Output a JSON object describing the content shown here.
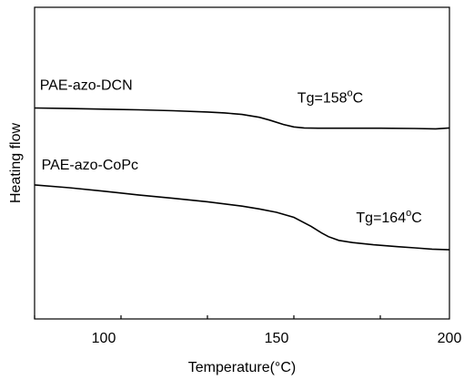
{
  "chart_data": {
    "type": "line",
    "title": "",
    "xlabel": "Temperature(°C)",
    "ylabel": "Heating flow",
    "xlim": [
      80,
      200
    ],
    "ylim": [
      0,
      10
    ],
    "x_ticks": [
      100,
      150,
      200
    ],
    "x_tick_labels": [
      "100",
      "150",
      "200"
    ],
    "y_ticks_shown": false,
    "grid": false,
    "legend": "none",
    "series": [
      {
        "name": "PAE-azo-DCN",
        "x": [
          80,
          90,
          100,
          110,
          120,
          130,
          135,
          140,
          145,
          148,
          152,
          155,
          158,
          162,
          170,
          180,
          190,
          196,
          200
        ],
        "y": [
          6.77,
          6.75,
          6.73,
          6.71,
          6.68,
          6.64,
          6.61,
          6.56,
          6.47,
          6.38,
          6.24,
          6.16,
          6.13,
          6.12,
          6.12,
          6.12,
          6.11,
          6.1,
          6.13
        ]
      },
      {
        "name": "PAE-azo-CoPc",
        "x": [
          80,
          90,
          100,
          110,
          120,
          130,
          140,
          145,
          150,
          155,
          160,
          163,
          165,
          168,
          172,
          178,
          185,
          190,
          195,
          200
        ],
        "y": [
          4.3,
          4.21,
          4.1,
          3.98,
          3.87,
          3.76,
          3.62,
          3.53,
          3.42,
          3.26,
          2.97,
          2.76,
          2.64,
          2.52,
          2.45,
          2.38,
          2.32,
          2.28,
          2.24,
          2.22
        ]
      }
    ],
    "annotations": [
      {
        "text": "Tg=158°C",
        "x": 156,
        "y": 6.95
      },
      {
        "text": "Tg=164°C",
        "x": 173,
        "y": 3.1
      }
    ],
    "series_labels": [
      {
        "text": "PAE-azo-DCN",
        "x": 81.5,
        "y": 7.35
      },
      {
        "text": "PAE-azo-CoPc",
        "x": 82,
        "y": 4.8
      }
    ]
  }
}
